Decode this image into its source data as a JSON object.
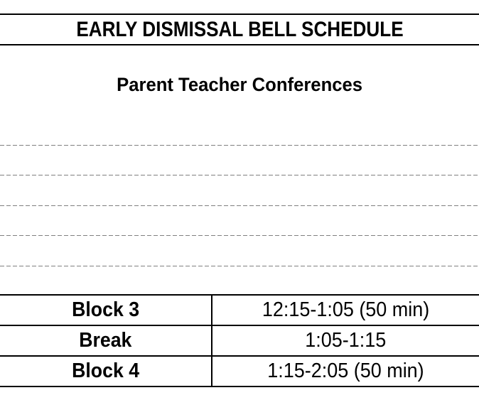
{
  "page": {
    "title": "EARLY DISMISSAL BELL SCHEDULE",
    "subtitle": "Parent Teacher Conferences"
  },
  "schedule": {
    "empty_row_count": 5,
    "columns": [
      "block",
      "time"
    ],
    "rows": [
      {
        "block": "Block 3",
        "time": "12:15-1:05 (50 min)"
      },
      {
        "block": "Break",
        "time": "1:05-1:15"
      },
      {
        "block": "Block 4",
        "time": "1:15-2:05 (50 min)"
      }
    ]
  },
  "colors": {
    "background": "#ffffff",
    "text": "#000000",
    "solid_line": "#000000",
    "dashed_line": "#808080"
  }
}
